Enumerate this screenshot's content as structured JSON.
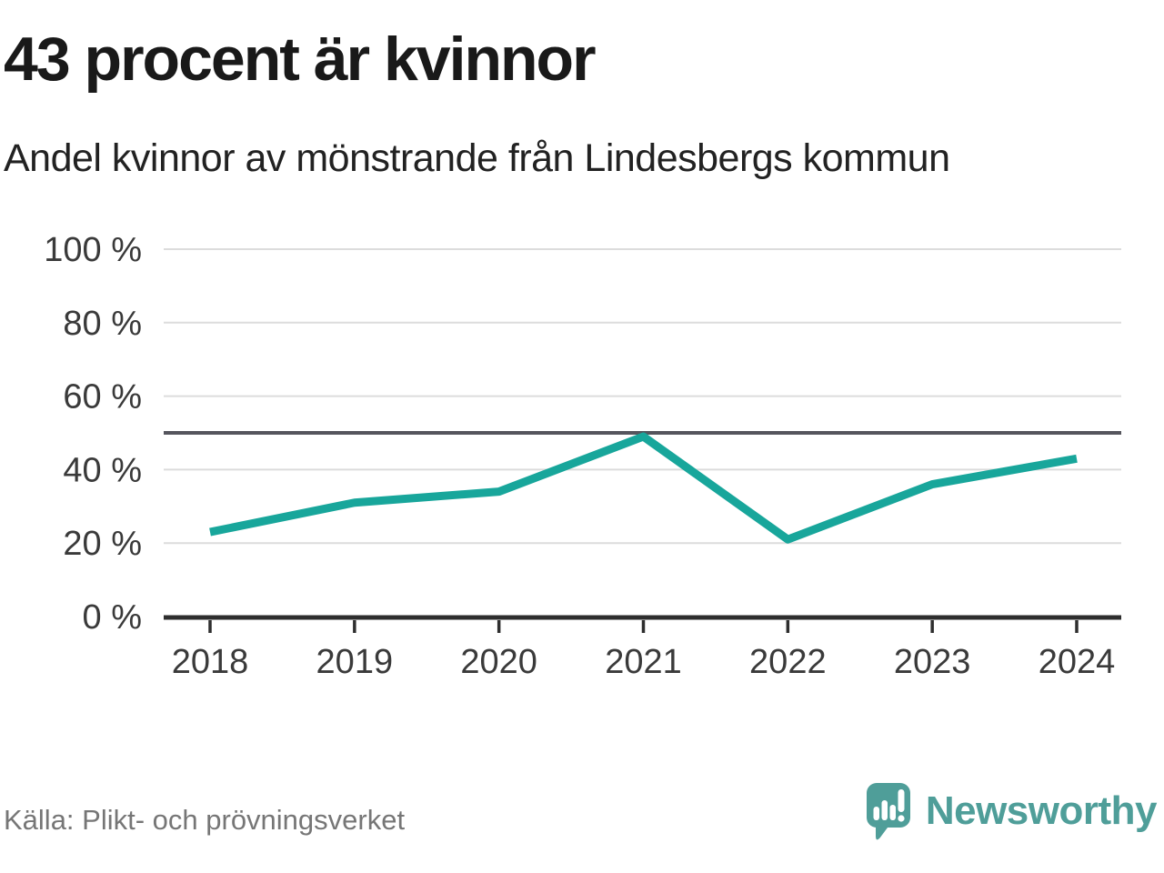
{
  "chart_data": {
    "type": "line",
    "title": "43 procent är kvinnor",
    "subtitle": "Andel kvinnor av mönstrande från Lindesbergs kommun",
    "x": [
      "2018",
      "2019",
      "2020",
      "2021",
      "2022",
      "2023",
      "2024"
    ],
    "series": [
      {
        "name": "Andel kvinnor av mönstrande",
        "values": [
          23,
          31,
          34,
          49,
          21,
          36,
          43
        ]
      }
    ],
    "unit": "%",
    "ylim": [
      0,
      100
    ],
    "yticks": [
      0,
      20,
      40,
      60,
      80,
      100
    ],
    "ytick_suffix": " %",
    "reference_line": 50,
    "grid": true,
    "legend": "none",
    "line_color": "#18a69b",
    "grid_color": "#dcdcdc",
    "axis_color": "#2e2e2e",
    "tick_label_color": "#3a3a3a",
    "reference_line_color": "#55555d"
  },
  "footer": {
    "source": "Källa: Plikt- och prövningsverket",
    "brand": "Newsworthy",
    "brand_color": "#4f9e99"
  }
}
